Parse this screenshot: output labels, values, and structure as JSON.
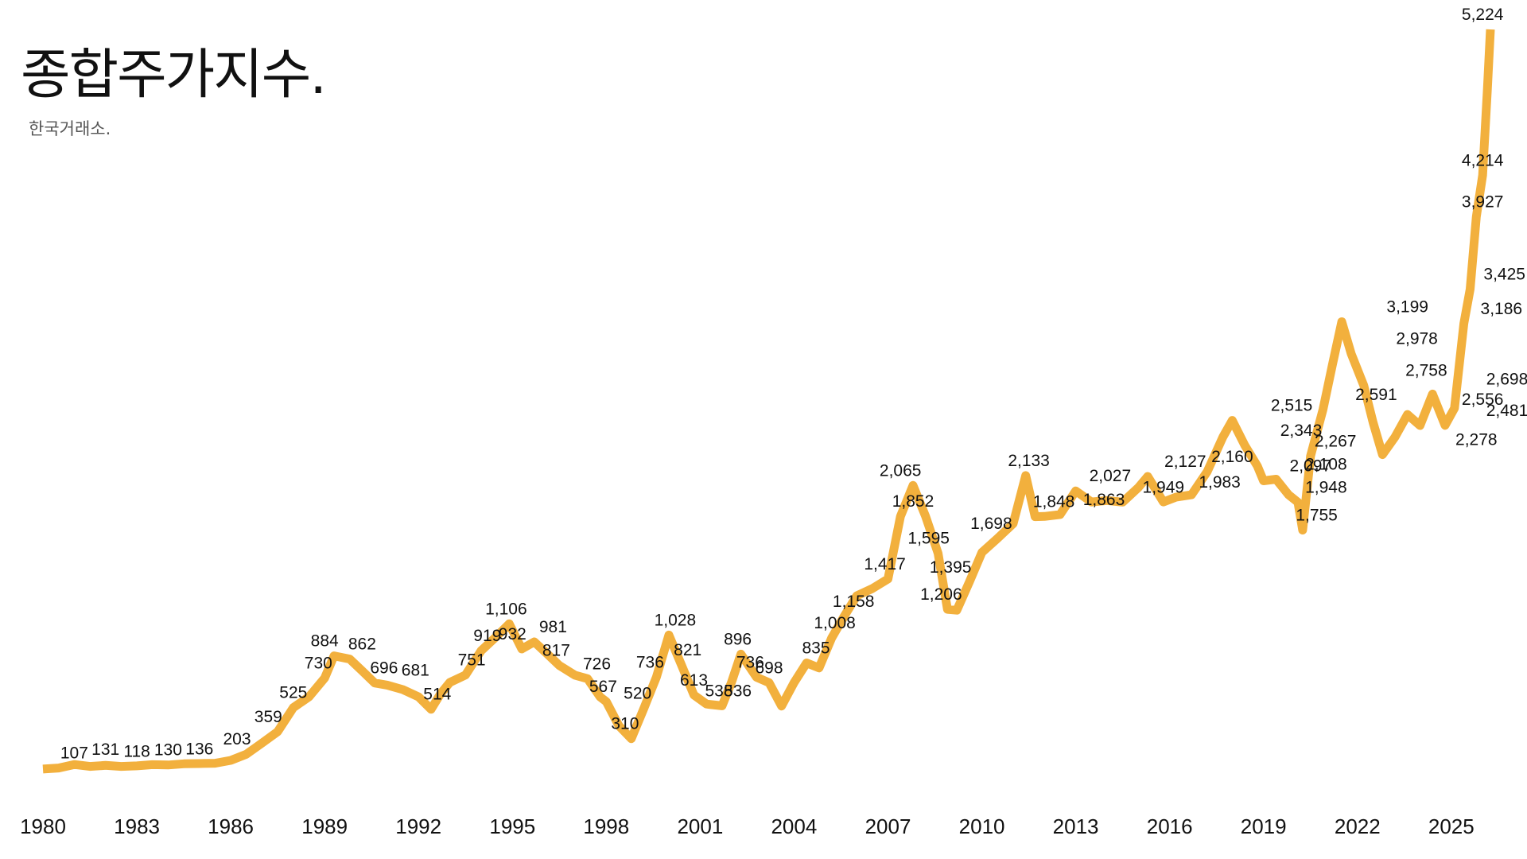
{
  "header": {
    "title": "종합주가지수.",
    "subtitle": "한국거래소."
  },
  "chart_data": {
    "type": "line",
    "title": "종합주가지수.",
    "subtitle": "한국거래소.",
    "xlabel": "",
    "ylabel": "",
    "xlim": [
      1980,
      2026.3
    ],
    "ylim": [
      0,
      5224
    ],
    "grid": false,
    "line_color": "#F2B03D",
    "x_ticks": [
      1980,
      1983,
      1986,
      1989,
      1992,
      1995,
      1998,
      2001,
      2004,
      2007,
      2010,
      2013,
      2016,
      2019,
      2022,
      2025
    ],
    "x_tick_labels": [
      "1980",
      "1983",
      "1986",
      "1989",
      "1992",
      "1995",
      "1998",
      "2001",
      "2004",
      "2007",
      "2010",
      "2013",
      "2016",
      "2019",
      "2022",
      "2025"
    ],
    "series": [
      {
        "x": [
          1980.0,
          1980.5,
          1981.0,
          1981.5,
          1982.0,
          1982.5,
          1983.0,
          1983.5,
          1984.0,
          1984.5,
          1985.0,
          1985.5,
          1986.0,
          1986.5,
          1987.0,
          1987.5,
          1988.0,
          1988.5,
          1989.0,
          1989.3,
          1989.8,
          1990.2,
          1990.6,
          1991.0,
          1991.5,
          1992.0,
          1992.4,
          1992.7,
          1993.0,
          1993.5,
          1994.0,
          1994.5,
          1994.9,
          1995.3,
          1995.7,
          1996.1,
          1996.5,
          1997.0,
          1997.4,
          1997.8,
          1998.0,
          1998.4,
          1998.8,
          1999.2,
          1999.6,
          2000.0,
          2000.4,
          2000.8,
          2001.2,
          2001.7,
          2002.0,
          2002.3,
          2002.8,
          2003.2,
          2003.6,
          2004.0,
          2004.4,
          2004.8,
          2005.2,
          2005.6,
          2006.0,
          2006.5,
          2007.0,
          2007.4,
          2007.8,
          2008.2,
          2008.6,
          2008.9,
          2009.2,
          2009.6,
          2010.0,
          2010.5,
          2011.0,
          2011.4,
          2011.7,
          2012.0,
          2012.5,
          2013.0,
          2013.5,
          2014.0,
          2014.5,
          2015.0,
          2015.3,
          2015.8,
          2016.2,
          2016.7,
          2017.2,
          2017.7,
          2018.0,
          2018.4,
          2018.8,
          2019.0,
          2019.4,
          2019.8,
          2020.1,
          2020.25,
          2020.5,
          2020.9,
          2021.2,
          2021.5,
          2021.8,
          2022.2,
          2022.5,
          2022.8,
          2023.2,
          2023.6,
          2024.0,
          2024.4,
          2024.8,
          2025.1,
          2025.4,
          2025.6,
          2025.8,
          2026.0,
          2026.15,
          2026.25
        ],
        "values": [
          100,
          107,
          131,
          118,
          125,
          118,
          122,
          130,
          128,
          136,
          138,
          140,
          160,
          203,
          280,
          359,
          525,
          600,
          730,
          884,
          862,
          780,
          696,
          681,
          650,
          600,
          514,
          620,
          700,
          751,
          919,
          1020,
          1106,
          932,
          981,
          900,
          817,
          750,
          726,
          600,
          567,
          400,
          310,
          520,
          736,
          1028,
          821,
          613,
          550,
          538,
          700,
          896,
          736,
          698,
          536,
          698,
          835,
          800,
          1008,
          1158,
          1300,
          1350,
          1417,
          1850,
          2065,
          1852,
          1595,
          1206,
          1200,
          1395,
          1600,
          1698,
          1800,
          2133,
          1848,
          1850,
          1863,
          2027,
          1950,
          1960,
          1949,
          2050,
          2127,
          1950,
          1983,
          2000,
          2160,
          2400,
          2515,
          2343,
          2200,
          2097,
          2108,
          2000,
          1948,
          1755,
          2267,
          2591,
          2900,
          3199,
          2978,
          2758,
          2500,
          2278,
          2400,
          2556,
          2480,
          2698,
          2481,
          2600,
          3186,
          3425,
          3927,
          4214,
          4800,
          5224
        ]
      }
    ],
    "data_labels": [
      {
        "x": 1981.0,
        "y": 107,
        "label": "107"
      },
      {
        "x": 1982.0,
        "y": 131,
        "label": "131"
      },
      {
        "x": 1983.0,
        "y": 118,
        "label": "118"
      },
      {
        "x": 1984.0,
        "y": 130,
        "label": "130"
      },
      {
        "x": 1985.0,
        "y": 136,
        "label": "136"
      },
      {
        "x": 1986.2,
        "y": 203,
        "label": "203"
      },
      {
        "x": 1987.2,
        "y": 359,
        "label": "359"
      },
      {
        "x": 1988.0,
        "y": 525,
        "label": "525"
      },
      {
        "x": 1988.8,
        "y": 730,
        "label": "730"
      },
      {
        "x": 1989.0,
        "y": 884,
        "label": "884"
      },
      {
        "x": 1990.2,
        "y": 862,
        "label": "862"
      },
      {
        "x": 1990.9,
        "y": 696,
        "label": "696"
      },
      {
        "x": 1991.9,
        "y": 681,
        "label": "681"
      },
      {
        "x": 1992.6,
        "y": 514,
        "label": "514"
      },
      {
        "x": 1993.7,
        "y": 751,
        "label": "751"
      },
      {
        "x": 1994.2,
        "y": 919,
        "label": "919"
      },
      {
        "x": 1994.8,
        "y": 1106,
        "label": "1,106"
      },
      {
        "x": 1995.0,
        "y": 932,
        "label": "932"
      },
      {
        "x": 1996.3,
        "y": 981,
        "label": "981"
      },
      {
        "x": 1996.4,
        "y": 817,
        "label": "817"
      },
      {
        "x": 1997.7,
        "y": 726,
        "label": "726"
      },
      {
        "x": 1997.9,
        "y": 567,
        "label": "567"
      },
      {
        "x": 1998.6,
        "y": 310,
        "label": "310"
      },
      {
        "x": 1999.0,
        "y": 520,
        "label": "520"
      },
      {
        "x": 1999.4,
        "y": 736,
        "label": "736"
      },
      {
        "x": 2000.2,
        "y": 1028,
        "label": "1,028"
      },
      {
        "x": 2000.6,
        "y": 821,
        "label": "821"
      },
      {
        "x": 2000.8,
        "y": 613,
        "label": "613"
      },
      {
        "x": 2001.6,
        "y": 538,
        "label": "538"
      },
      {
        "x": 2002.2,
        "y": 896,
        "label": "896"
      },
      {
        "x": 2002.6,
        "y": 736,
        "label": "736"
      },
      {
        "x": 2003.2,
        "y": 698,
        "label": "698"
      },
      {
        "x": 2002.2,
        "y": 536,
        "label": "536"
      },
      {
        "x": 2004.7,
        "y": 835,
        "label": "835"
      },
      {
        "x": 2005.3,
        "y": 1008,
        "label": "1,008"
      },
      {
        "x": 2005.9,
        "y": 1158,
        "label": "1,158"
      },
      {
        "x": 2006.9,
        "y": 1417,
        "label": "1,417"
      },
      {
        "x": 2007.4,
        "y": 2065,
        "label": "2,065"
      },
      {
        "x": 2007.8,
        "y": 1852,
        "label": "1,852"
      },
      {
        "x": 2008.3,
        "y": 1595,
        "label": "1,595"
      },
      {
        "x": 2009.0,
        "y": 1395,
        "label": "1,395"
      },
      {
        "x": 2008.7,
        "y": 1206,
        "label": "1,206"
      },
      {
        "x": 2010.3,
        "y": 1698,
        "label": "1,698"
      },
      {
        "x": 2011.5,
        "y": 2133,
        "label": "2,133"
      },
      {
        "x": 2012.3,
        "y": 1848,
        "label": "1,848"
      },
      {
        "x": 2013.9,
        "y": 1863,
        "label": "1,863"
      },
      {
        "x": 2014.1,
        "y": 2027,
        "label": "2,027"
      },
      {
        "x": 2015.8,
        "y": 1949,
        "label": "1,949"
      },
      {
        "x": 2016.5,
        "y": 2127,
        "label": "2,127"
      },
      {
        "x": 2017.6,
        "y": 1983,
        "label": "1,983"
      },
      {
        "x": 2018.0,
        "y": 2160,
        "label": "2,160"
      },
      {
        "x": 2019.9,
        "y": 2515,
        "label": "2,515"
      },
      {
        "x": 2020.2,
        "y": 2343,
        "label": "2,343"
      },
      {
        "x": 2020.5,
        "y": 2097,
        "label": "2,097"
      },
      {
        "x": 2021.0,
        "y": 2108,
        "label": "2,108"
      },
      {
        "x": 2021.3,
        "y": 2267,
        "label": "2,267"
      },
      {
        "x": 2021.0,
        "y": 1948,
        "label": "1,948"
      },
      {
        "x": 2020.7,
        "y": 1755,
        "label": "1,755"
      },
      {
        "x": 2022.6,
        "y": 2591,
        "label": "2,591"
      },
      {
        "x": 2023.6,
        "y": 3199,
        "label": "3,199"
      },
      {
        "x": 2023.9,
        "y": 2978,
        "label": "2,978"
      },
      {
        "x": 2024.2,
        "y": 2758,
        "label": "2,758"
      },
      {
        "x": 2026.0,
        "y": 2556,
        "label": "2,556"
      },
      {
        "x": 2025.8,
        "y": 2278,
        "label": "2,278"
      },
      {
        "x": 2026.8,
        "y": 2481,
        "label": "2,481"
      },
      {
        "x": 2027.3,
        "y": 2698,
        "label": "2,698"
      },
      {
        "x": 2026.6,
        "y": 3186,
        "label": "3,186"
      },
      {
        "x": 2026.7,
        "y": 3425,
        "label": "3,425"
      },
      {
        "x": 2026.0,
        "y": 3927,
        "label": "3,927"
      },
      {
        "x": 2026.0,
        "y": 4214,
        "label": "4,214"
      },
      {
        "x": 2026.0,
        "y": 5224,
        "label": "5,224"
      }
    ]
  }
}
